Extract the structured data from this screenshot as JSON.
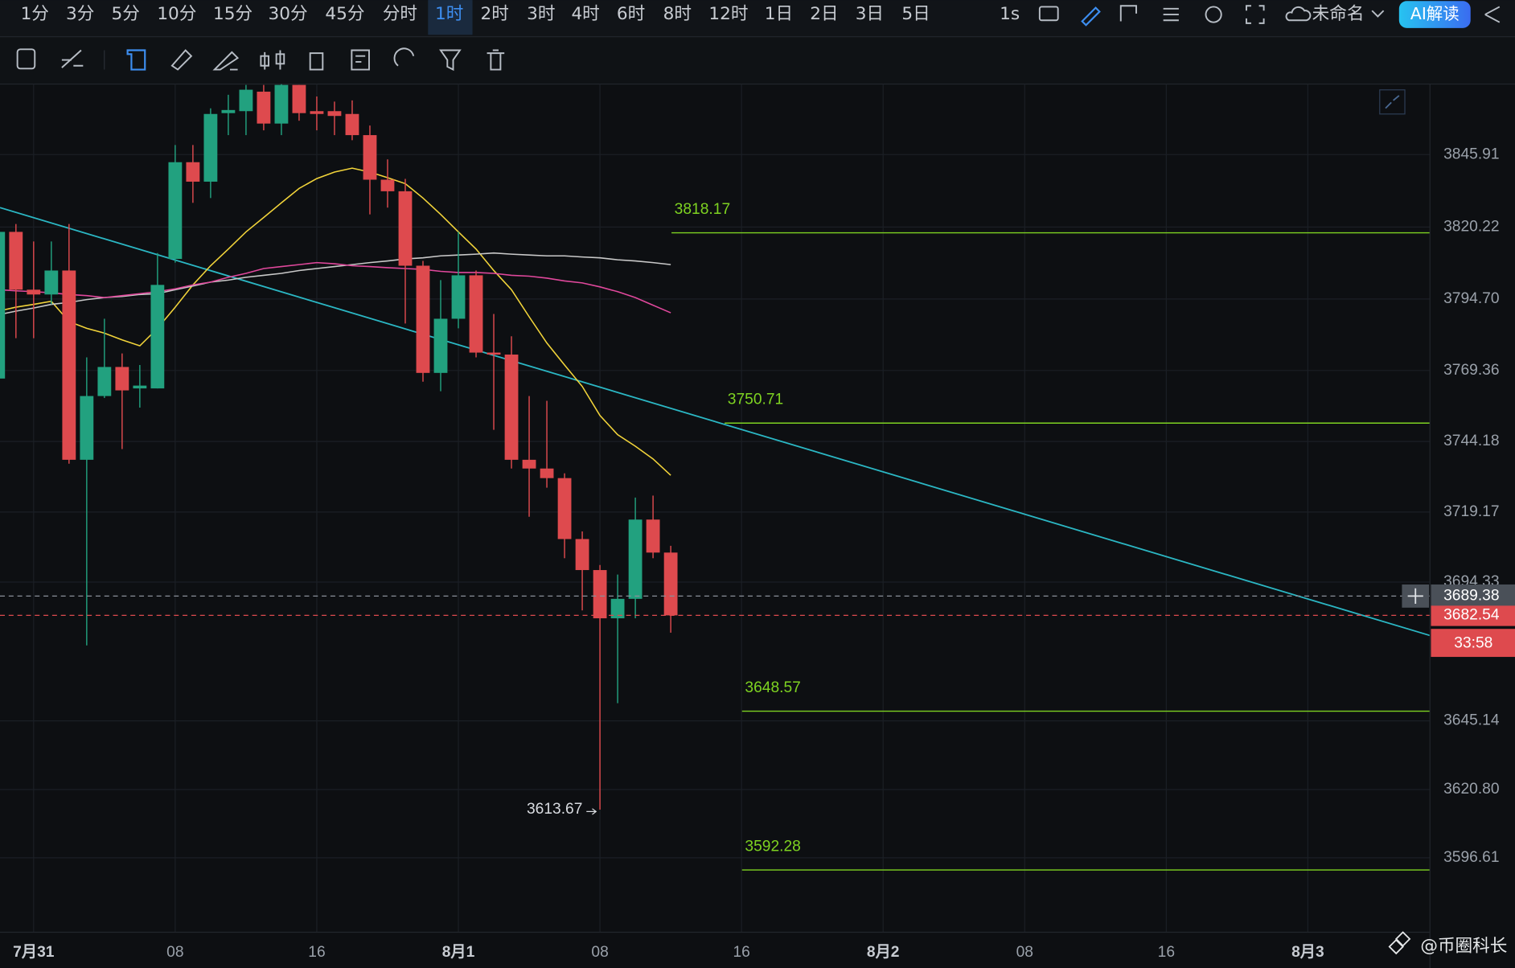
{
  "toolbar": {
    "timeframes": [
      "1分",
      "3分",
      "5分",
      "10分",
      "15分",
      "30分",
      "45分",
      "分时",
      "1时",
      "2时",
      "3时",
      "4时",
      "6时",
      "8时",
      "12时",
      "1日",
      "2日",
      "3日",
      "5日"
    ],
    "active_timeframe": 8,
    "interval": "1s",
    "layout_name": "未命名",
    "ai_button": "AI解读"
  },
  "chart_data": {
    "type": "candlestick",
    "up_color": "#22a17f",
    "down_color": "#de4a4e",
    "open": [
      3766.5,
      3818.5,
      3798.0,
      3796.3,
      3804.8,
      3737.7,
      3760.3,
      3770.6,
      3763.0,
      3763.0,
      3808.9,
      3843.2,
      3836.3,
      3860.6,
      3861.3,
      3868.2,
      3856.9,
      3870.6,
      3861.3,
      3861.3,
      3860.3,
      3852.8,
      3837.0,
      3832.9,
      3806.5,
      3768.5,
      3787.7,
      3803.1,
      3775.7,
      3775.0,
      3737.7,
      3734.6,
      3731.2,
      3709.6,
      3698.6,
      3681.5,
      3688.4,
      3716.5,
      3704.8
    ],
    "high": [
      3820.2,
      3821.3,
      3815.1,
      3815.1,
      3821.3,
      3774.0,
      3787.7,
      3775.4,
      3771.3,
      3811.0,
      3849.3,
      3849.3,
      3862.3,
      3867.1,
      3870.6,
      3870.6,
      3870.9,
      3870.6,
      3866.5,
      3864.7,
      3865.1,
      3856.2,
      3844.2,
      3837.3,
      3808.2,
      3801.4,
      3818.5,
      3804.8,
      3789.4,
      3781.5,
      3760.3,
      3758.6,
      3732.9,
      3712.3,
      3700.4,
      3697.0,
      3724.3,
      3725.0,
      3707.2
    ],
    "low": [
      3765.4,
      3780.8,
      3780.8,
      3792.8,
      3736.3,
      3671.9,
      3759.6,
      3741.5,
      3756.2,
      3763.0,
      3807.6,
      3828.8,
      3830.5,
      3852.8,
      3852.8,
      3854.5,
      3852.8,
      3857.9,
      3854.5,
      3852.8,
      3851.0,
      3824.7,
      3827.1,
      3786.0,
      3765.4,
      3762.0,
      3784.3,
      3774.0,
      3748.3,
      3734.6,
      3717.5,
      3727.8,
      3702.8,
      3684.3,
      3613.67,
      3651.4,
      3681.5,
      3702.8,
      3676.4
    ],
    "close": [
      3818.5,
      3798.0,
      3796.3,
      3804.8,
      3737.7,
      3760.3,
      3770.6,
      3762.3,
      3764.0,
      3799.7,
      3843.2,
      3836.3,
      3860.3,
      3861.7,
      3868.9,
      3856.9,
      3870.6,
      3860.6,
      3860.3,
      3859.6,
      3852.8,
      3837.0,
      3832.9,
      3806.5,
      3768.5,
      3787.7,
      3803.1,
      3775.7,
      3775.0,
      3737.7,
      3734.6,
      3731.2,
      3709.6,
      3698.6,
      3681.5,
      3688.4,
      3716.5,
      3704.8,
      3682.54
    ],
    "series": [
      {
        "color": "#f2d43a",
        "values": [
          3790.4,
          3791.8,
          3792.8,
          3793.9,
          3786.7,
          3784.3,
          3782.6,
          3780.2,
          3778.1,
          3784.3,
          3791.8,
          3799.7,
          3806.5,
          3812.4,
          3818.5,
          3823.6,
          3828.8,
          3833.9,
          3837.4,
          3839.7,
          3841.1,
          3839.7,
          3837.7,
          3835.6,
          3830.5,
          3824.7,
          3818.5,
          3812.4,
          3804.8,
          3798.0,
          3788.4,
          3779.1,
          3771.3,
          3763.7,
          3753.4,
          3746.6,
          3742.5,
          3738.0,
          3732.2
        ]
      },
      {
        "color": "#c9c9c9",
        "values": [
          3789.1,
          3790.4,
          3791.5,
          3792.8,
          3793.5,
          3794.5,
          3795.2,
          3795.6,
          3796.3,
          3796.6,
          3798.0,
          3799.3,
          3800.7,
          3801.4,
          3802.4,
          3803.1,
          3803.8,
          3804.8,
          3805.5,
          3806.2,
          3806.9,
          3807.6,
          3808.2,
          3808.9,
          3809.3,
          3810.0,
          3810.3,
          3810.6,
          3811.0,
          3810.6,
          3810.3,
          3810.0,
          3810.0,
          3809.6,
          3809.3,
          3808.6,
          3808.2,
          3807.6,
          3806.9
        ]
      },
      {
        "color": "#e0489c",
        "values": [
          3798.0,
          3797.6,
          3797.3,
          3796.9,
          3796.3,
          3795.9,
          3795.2,
          3795.9,
          3796.6,
          3797.3,
          3798.3,
          3799.7,
          3800.7,
          3802.4,
          3803.8,
          3805.5,
          3806.2,
          3806.9,
          3807.6,
          3807.2,
          3806.5,
          3806.2,
          3805.8,
          3805.5,
          3805.2,
          3804.5,
          3804.1,
          3804.1,
          3803.8,
          3803.1,
          3802.8,
          3802.1,
          3801.1,
          3800.4,
          3799.0,
          3797.3,
          3795.2,
          3792.5,
          3789.8
        ]
      }
    ],
    "trendline": {
      "color": "#2bb7c4",
      "values": [
        3827.1,
        3675.4
      ]
    },
    "levels": [
      {
        "value": 3818.17,
        "color": "#7ed321"
      },
      {
        "value": 3750.71,
        "color": "#7ed321"
      },
      {
        "value": 3648.57,
        "color": "#7ed321"
      },
      {
        "value": 3592.28,
        "color": "#7ed321"
      }
    ],
    "crosshair": 3689.38,
    "last_price": 3682.54,
    "countdown": "33:58",
    "xlim": [
      0.1,
      80.9
    ],
    "ylim": [
      3570.2,
      3870.9
    ],
    "xticks": [
      {
        "value": 2,
        "label": "7月31"
      },
      {
        "value": 10,
        "label": "08"
      },
      {
        "value": 18,
        "label": "16"
      },
      {
        "value": 26,
        "label": "8月1"
      },
      {
        "value": 34,
        "label": "08"
      },
      {
        "value": 42,
        "label": "16"
      },
      {
        "value": 50,
        "label": "8月2"
      },
      {
        "value": 58,
        "label": "08"
      },
      {
        "value": 66,
        "label": "16"
      },
      {
        "value": 74,
        "label": "8月3"
      }
    ],
    "yticks": [
      3845.91,
      3820.22,
      {
        "value": 3794.7,
        "label": "3794.70"
      },
      3769.36,
      3744.18,
      3719.17,
      3694.33,
      3645.14,
      {
        "value": 3620.8,
        "label": "3620.80"
      },
      3596.61
    ],
    "grid": true
  },
  "watermark": "@币圈科长"
}
